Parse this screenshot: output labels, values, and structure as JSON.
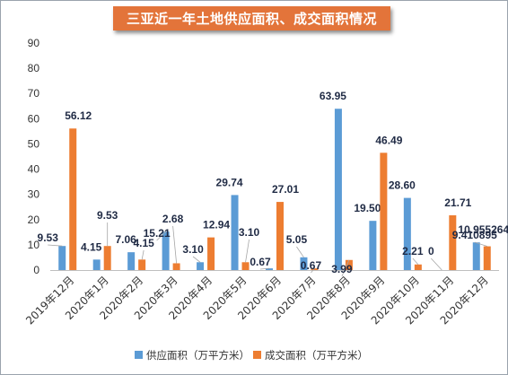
{
  "chart_data": {
    "type": "bar",
    "title": "三亚近一年土地供应面积、成交面积情况",
    "xlabel": "",
    "ylabel": "",
    "ylim": [
      0,
      90
    ],
    "yticks": [
      0,
      10,
      20,
      30,
      40,
      50,
      60,
      70,
      80,
      90
    ],
    "grid": false,
    "legend_position": "bottom",
    "categories": [
      "2019年12月",
      "2020年1月",
      "2020年2月",
      "2020年3月",
      "2020年4月",
      "2020年5月",
      "2020年6月",
      "2020年7月",
      "2020年8月",
      "2020年9月",
      "2020年10月",
      "2020年11月",
      "2020年12月"
    ],
    "series": [
      {
        "name": "供应面积（万平方米）",
        "color": "#5b9bd5",
        "values": [
          9.53,
          4.15,
          7.06,
          15.21,
          3.1,
          29.74,
          0.67,
          5.05,
          63.95,
          19.5,
          28.6,
          0,
          10.955264
        ],
        "labels": [
          "9.53",
          "4.15",
          "7.06",
          "15.21",
          "3.10",
          "29.74",
          "0.67",
          "5.05",
          "63.95",
          "19.50",
          "28.60",
          "0",
          "10.955264"
        ]
      },
      {
        "name": "成交面积（万平方米）",
        "color": "#ed7d31",
        "values": [
          56.12,
          9.53,
          4.15,
          2.68,
          12.94,
          3.1,
          27.01,
          0.67,
          3.99,
          46.49,
          2.21,
          21.71,
          9.410895
        ],
        "labels": [
          "56.12",
          "9.53",
          "4.15",
          "2.68",
          "12.94",
          "3.10",
          "27.01",
          "0.67",
          "3.99",
          "46.49",
          "2.21",
          "21.71",
          "9.410895"
        ]
      }
    ]
  }
}
